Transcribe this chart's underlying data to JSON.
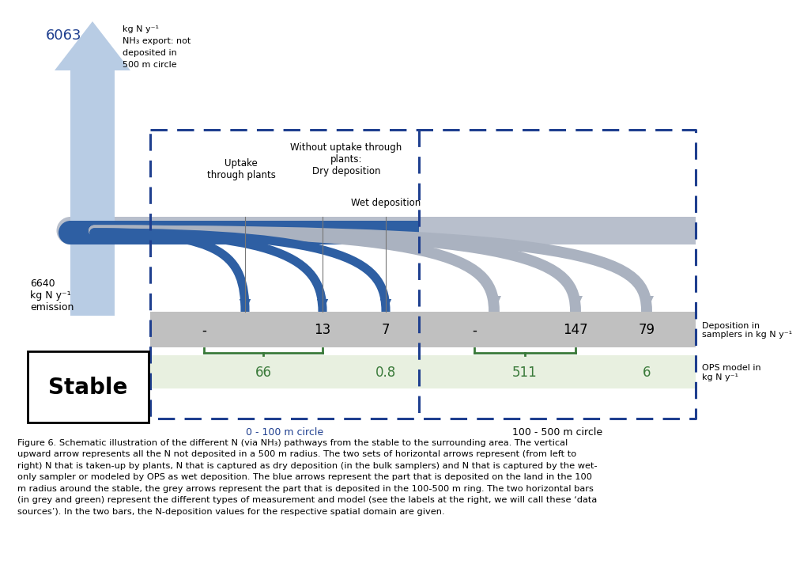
{
  "bg_color": "#ffffff",
  "up_arrow_color": "#b8cce4",
  "blue_band_color": "#2e5fa3",
  "gray_band_color": "#b8bfcc",
  "blue_arrow_color": "#2e5fa3",
  "gray_arrow_color": "#aab2c0",
  "dashed_color": "#1f3f8f",
  "gray_bar_color": "#c0c0c0",
  "green_bar_color": "#e8f0e0",
  "green_text_color": "#3a7a3a",
  "green_bracket_color": "#3a7a3a",
  "export_value": "6063",
  "export_color": "#1f3f8f",
  "export_desc": [
    "kg N y⁻¹",
    "NH₃ export: not",
    "deposited in",
    "500 m circle"
  ],
  "emission_lines": [
    "6640",
    "kg N y⁻¹",
    "emission"
  ],
  "stable_text": "Stable",
  "header_uptake": "Uptake\nthrough plants",
  "header_dry1": "Without uptake through",
  "header_dry2": "plants:",
  "header_dry3": "Dry deposition",
  "header_wet": "Wet deposition",
  "gray_values_left": [
    "-",
    "13",
    "7"
  ],
  "gray_values_right": [
    "-",
    "147",
    "79"
  ],
  "green_values_left": [
    "66",
    "0.8"
  ],
  "green_values_right": [
    "511",
    "6"
  ],
  "right_label_gray": "Deposition in\nsamplers in kg N y⁻¹",
  "right_label_green": "OPS model in\nkg N y⁻¹",
  "right_label_green_color": "#3a7a3a",
  "circle_label_left": "0 - 100 m circle",
  "circle_label_right": "100 - 500 m circle",
  "caption_line1": "Figure 6. Schematic illustration of the different N (via NH₃) pathways from the stable to the surrounding area. The vertical",
  "caption_line2": "upward arrow represents all the N not deposited in a 500 m radius. The two sets of horizontal arrows represent (from left to",
  "caption_line3": "right) N that is taken-up by plants, N that is captured as dry deposition (in the bulk samplers) and N that is captured by the wet-",
  "caption_line4": "only sampler or modeled by OPS as wet deposition. The blue arrows represent the part that is deposited on the land in the 100",
  "caption_line5": "m radius around the stable, the grey arrows represent the part that is deposited in the 100-500 m ring. The two horizontal bars",
  "caption_line6": "(in grey and green) represent the different types of measurement and model (see the labels at the right, we will call these ‘data",
  "caption_line7": "sources’). In the two bars, the N-deposition values for the respective spatial domain are given."
}
